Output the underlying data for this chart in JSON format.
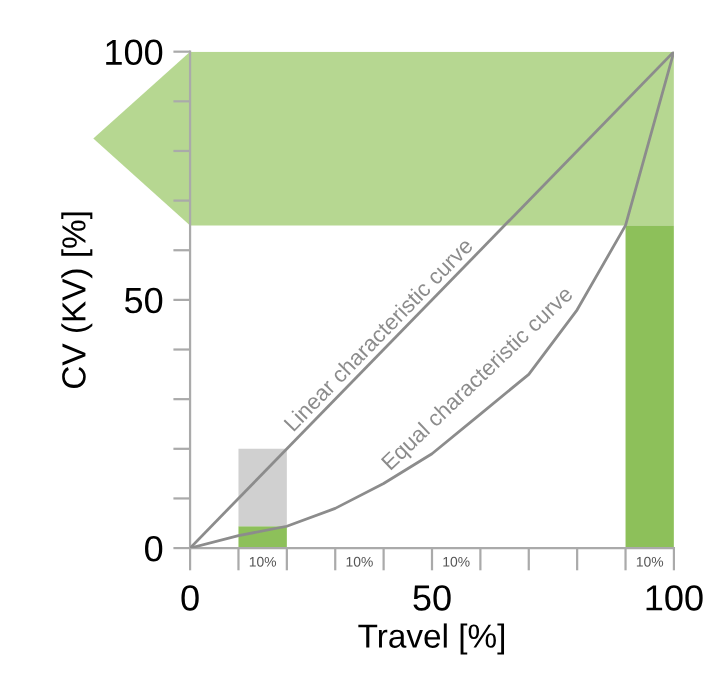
{
  "chart_data": {
    "type": "line",
    "xlabel": "Travel [%]",
    "ylabel": "CV (KV) [%]",
    "xlim": [
      0,
      100
    ],
    "ylim": [
      0,
      100
    ],
    "xticks": [
      0,
      {
        "value": 10,
        "label": null
      },
      {
        "value": 20,
        "label": null
      },
      {
        "value": 30,
        "label": null
      },
      {
        "value": 40,
        "label": null
      },
      50,
      {
        "value": 60,
        "label": null
      },
      {
        "value": 70,
        "label": null
      },
      {
        "value": 80,
        "label": null
      },
      {
        "value": 90,
        "label": null
      },
      100
    ],
    "yticks": [
      0,
      {
        "value": 10,
        "label": null
      },
      {
        "value": 20,
        "label": null
      },
      {
        "value": 30,
        "label": null
      },
      {
        "value": 40,
        "label": null
      },
      50,
      {
        "value": 60,
        "label": null
      },
      {
        "value": 70,
        "label": null
      },
      {
        "value": 80,
        "label": null
      },
      {
        "value": 90,
        "label": null
      },
      100
    ],
    "series": [
      {
        "name": "Linear characteristic curve",
        "color": "#8c8c8c",
        "x": [
          0,
          100
        ],
        "values": [
          0,
          100
        ]
      },
      {
        "name": "Equal characteristic curve",
        "color": "#8c8c8c",
        "x": [
          0,
          10,
          20,
          30,
          40,
          50,
          60,
          70,
          80,
          90,
          100
        ],
        "values": [
          0,
          2.5,
          4.4,
          8,
          13,
          19,
          27,
          35,
          48,
          65,
          100
        ]
      },
      {
        "type": "bar",
        "color": "#8dc05a",
        "x": [
          15,
          95
        ],
        "values": [
          4.4,
          65
        ]
      },
      {
        "type": "bar",
        "color": "#d0d0d0",
        "x": [
          15
        ],
        "values": [
          15.6
        ]
      }
    ],
    "stacked": true,
    "bands": [
      {
        "axis": "y",
        "from": 65,
        "to": 100,
        "color": "#a9d07e"
      }
    ],
    "annotations": [
      "10%",
      "10%",
      "10%",
      "10%"
    ],
    "grid": false,
    "legend": false,
    "marker": "none",
    "line_style": "solid"
  }
}
